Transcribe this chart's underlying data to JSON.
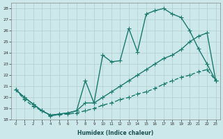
{
  "bg_color": "#cde8ea",
  "grid_color": "#b0cdd0",
  "line_color": "#1a7a6e",
  "xlabel": "Humidex (Indice chaleur)",
  "xlim": [
    -0.5,
    23.5
  ],
  "ylim": [
    18,
    28.5
  ],
  "xtick_labels": [
    "0",
    "1",
    "2",
    "3",
    "4",
    "5",
    "6",
    "7",
    "8",
    "9",
    "10",
    "11",
    "12",
    "13",
    "14",
    "15",
    "16",
    "17",
    "18",
    "19",
    "20",
    "21",
    "22",
    "23"
  ],
  "ytick_labels": [
    "18",
    "19",
    "20",
    "21",
    "22",
    "23",
    "24",
    "25",
    "26",
    "27",
    "28"
  ],
  "line_upper_x": [
    0,
    1,
    2,
    3,
    4,
    5,
    6,
    7,
    8,
    9,
    10,
    11,
    12,
    13,
    14,
    15,
    16,
    17,
    18,
    19,
    20,
    21,
    22,
    23
  ],
  "line_upper_y": [
    20.7,
    20.0,
    19.4,
    18.8,
    18.4,
    18.5,
    18.6,
    18.8,
    21.5,
    19.5,
    23.8,
    23.2,
    23.3,
    26.2,
    24.1,
    27.5,
    27.8,
    28.0,
    27.5,
    27.2,
    26.0,
    24.4,
    23.0,
    21.5
  ],
  "line_mid_x": [
    0,
    1,
    2,
    3,
    4,
    5,
    6,
    7,
    8,
    9,
    10,
    11,
    12,
    13,
    14,
    15,
    16,
    17,
    18,
    19,
    20,
    21,
    22,
    23
  ],
  "line_mid_y": [
    20.7,
    20.0,
    19.4,
    18.8,
    18.4,
    18.5,
    18.6,
    18.8,
    19.5,
    19.5,
    20.0,
    20.5,
    21.0,
    21.5,
    22.0,
    22.5,
    23.0,
    23.5,
    23.8,
    24.3,
    25.0,
    25.5,
    25.8,
    21.5
  ],
  "line_lower_x": [
    0,
    1,
    2,
    3,
    4,
    5,
    6,
    7,
    8,
    9,
    10,
    11,
    12,
    13,
    14,
    15,
    16,
    17,
    18,
    19,
    20,
    21,
    22,
    23
  ],
  "line_lower_y": [
    20.7,
    19.8,
    19.2,
    18.8,
    18.35,
    18.45,
    18.5,
    18.6,
    18.8,
    19.0,
    19.3,
    19.5,
    19.8,
    20.0,
    20.3,
    20.5,
    20.8,
    21.2,
    21.5,
    21.8,
    22.0,
    22.3,
    22.5,
    21.5
  ]
}
